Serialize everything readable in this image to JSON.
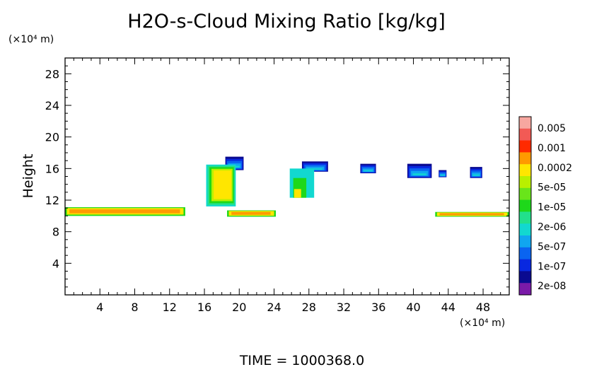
{
  "chart_data": {
    "type": "heatmap",
    "title": "H2O-s-Cloud Mixing Ratio [kg/kg]",
    "ylabel": "Height",
    "xlabel": "",
    "x_unit": "(×10⁴ m)",
    "y_unit": "(×10⁴ m)",
    "xlim": [
      0,
      51
    ],
    "ylim": [
      0,
      30
    ],
    "x_ticks": [
      4,
      8,
      12,
      16,
      20,
      24,
      28,
      32,
      36,
      40,
      44,
      48
    ],
    "y_ticks": [
      4,
      8,
      12,
      16,
      20,
      24,
      28
    ],
    "colorbar": {
      "labels": [
        "0.005",
        "0.001",
        "0.0002",
        "5e-05",
        "1e-05",
        "2e-06",
        "5e-07",
        "1e-07",
        "2e-08"
      ],
      "colors": [
        "#f7a7a0",
        "#f25a55",
        "#ff2a00",
        "#ff9a00",
        "#ffe600",
        "#b9f000",
        "#69e51a",
        "#1ed81a",
        "#22e08c",
        "#12d8d0",
        "#10a6f0",
        "#0a64f0",
        "#0828e0",
        "#0a0a90",
        "#7a1aa8"
      ]
    },
    "cloud_regions": [
      {
        "kind": "anvil",
        "x0": 18.4,
        "base": 15.8,
        "top": 17.5,
        "width": 2.1
      },
      {
        "kind": "core",
        "x0": 16.2,
        "x1": 19.6,
        "base": 11.2,
        "top": 16.5
      },
      {
        "kind": "anvil",
        "x0": 27.2,
        "base": 15.6,
        "top": 16.9,
        "width": 3.0
      },
      {
        "kind": "column",
        "x0": 25.8,
        "x1": 28.6,
        "base": 12.3,
        "top": 16.0
      },
      {
        "kind": "anvil",
        "x0": 33.9,
        "base": 15.4,
        "top": 16.6,
        "width": 1.8
      },
      {
        "kind": "anvil",
        "x0": 39.3,
        "base": 14.8,
        "top": 16.6,
        "width": 2.8
      },
      {
        "kind": "anvil",
        "x0": 42.9,
        "base": 14.9,
        "top": 15.8,
        "width": 0.9
      },
      {
        "kind": "anvil",
        "x0": 46.5,
        "base": 14.8,
        "top": 16.2,
        "width": 1.4
      },
      {
        "kind": "layer",
        "x0": 0.0,
        "x1": 13.8,
        "base": 10.0,
        "top": 11.1
      },
      {
        "kind": "layer",
        "x0": 18.6,
        "x1": 24.2,
        "base": 9.9,
        "top": 10.7
      },
      {
        "kind": "layer",
        "x0": 42.5,
        "x1": 51.0,
        "base": 9.9,
        "top": 10.5
      }
    ],
    "grid": false,
    "legend": "colorbar-right"
  },
  "footer": {
    "time_label": "TIME  =  1000368.0"
  }
}
